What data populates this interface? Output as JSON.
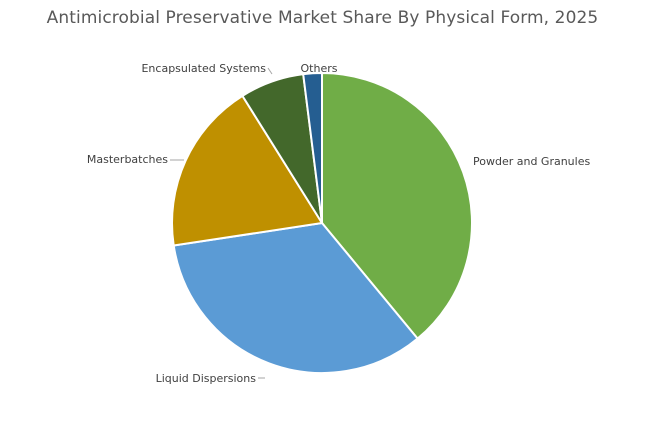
{
  "chart_data": {
    "type": "pie",
    "title": "Antimicrobial Preservative Market Share By Physical Form, 2025",
    "categories": [
      "Powder and Granules",
      "Liquid Dispersions",
      "Masterbatches",
      "Encapsulated Systems",
      "Others"
    ],
    "values": [
      39,
      33.6,
      18.5,
      6.9,
      2.0
    ],
    "colors": [
      "#70ad47",
      "#5b9bd5",
      "#bf9000",
      "#43682b",
      "#255e91"
    ],
    "start_angle_deg": 0,
    "direction": "clockwise",
    "legend": "none",
    "data_labels": "category names outside with leader lines"
  }
}
